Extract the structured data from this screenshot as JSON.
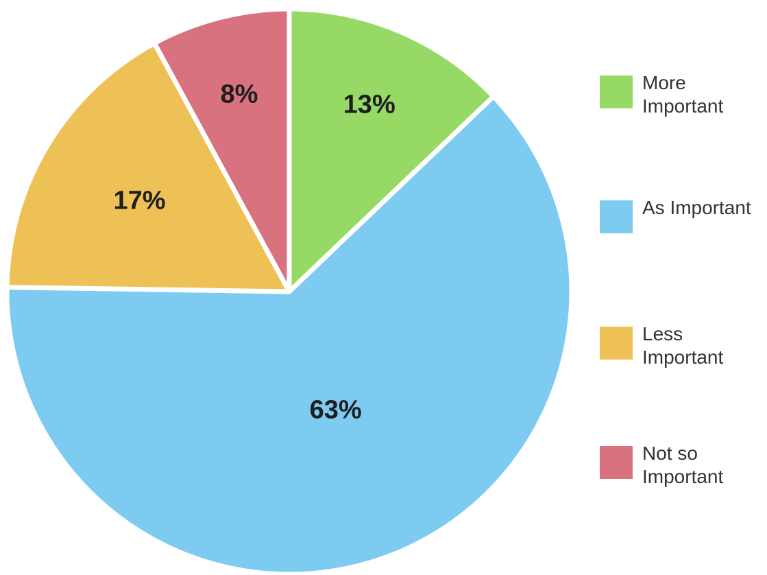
{
  "chart_data": {
    "type": "pie",
    "title": "",
    "slices": [
      {
        "name": "More Important",
        "value": 13,
        "label": "13%",
        "color": "#97d965"
      },
      {
        "name": "As Important",
        "value": 63,
        "label": "63%",
        "color": "#7ecbf1"
      },
      {
        "name": "Less Important",
        "value": 17,
        "label": "17%",
        "color": "#eec157"
      },
      {
        "name": "Not so Important",
        "value": 8,
        "label": "8%",
        "color": "#d8727f"
      }
    ],
    "legend": {
      "position": "right",
      "items": [
        {
          "label": "More Important",
          "color": "#97d965"
        },
        {
          "label": "As Important",
          "color": "#7ecbf1"
        },
        {
          "label": "Less Important",
          "color": "#eec157"
        },
        {
          "label": "Not so Important",
          "color": "#d8727f"
        }
      ]
    }
  }
}
